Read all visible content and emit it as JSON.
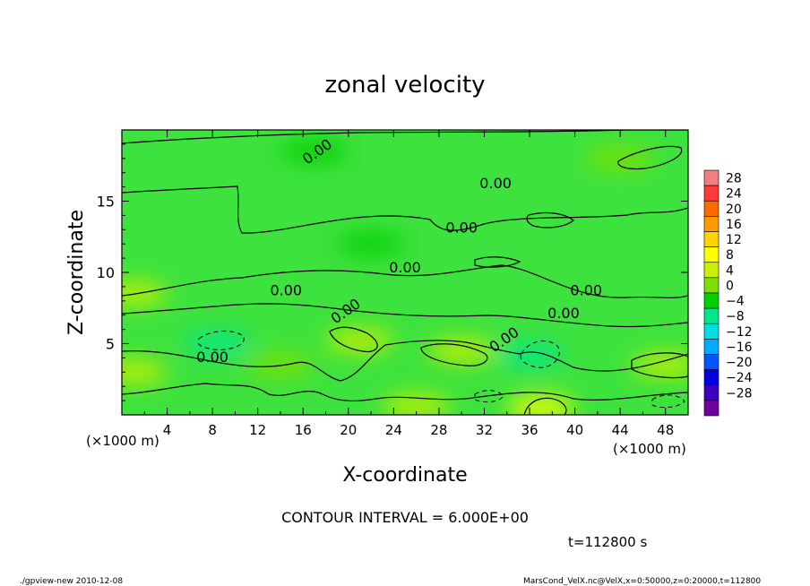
{
  "chart_data": {
    "type": "heatmap",
    "title": "zonal velocity",
    "xlabel": "X-coordinate",
    "ylabel": "Z-coordinate",
    "x_unit_label_left": "(×1000 m)",
    "x_unit_label_right": "(×1000 m)",
    "xlim": [
      0,
      50
    ],
    "ylim": [
      0,
      20
    ],
    "x_ticks": [
      4,
      8,
      12,
      16,
      20,
      24,
      28,
      32,
      36,
      40,
      44,
      48
    ],
    "y_ticks": [
      5,
      10,
      15
    ],
    "colorbar_levels": [
      28,
      24,
      20,
      16,
      12,
      8,
      4,
      0,
      -4,
      -8,
      -12,
      -16,
      -20,
      -24,
      -28
    ],
    "colorbar_colors": [
      "#f08080",
      "#ff3a3a",
      "#ff6a00",
      "#ff9a00",
      "#ffd400",
      "#ffff00",
      "#c8f000",
      "#7ee000",
      "#00d000",
      "#00e88c",
      "#00e0e0",
      "#00aaff",
      "#0055ff",
      "#0000e0",
      "#4000c0",
      "#7000a0"
    ],
    "contour_interval_text": "CONTOUR INTERVAL = 6.000E+00",
    "contour_labels": [
      "0.00",
      "0.00",
      "0.00",
      "0.00",
      "0.00",
      "0.00",
      "0.00",
      "0.00",
      "0.00"
    ],
    "time_label": "t=112800 s",
    "footer_left": "./gpview-new  2010-12-08",
    "footer_right": "MarsCond_VelX.nc@VelX,x=0:50000,z=0:20000,t=112800",
    "field": [
      {
        "x": 17.0,
        "z": 18.5,
        "v": -1
      },
      {
        "x": 44.0,
        "z": 18.0,
        "v": 3
      },
      {
        "x": 22.0,
        "z": 12.0,
        "v": -1
      },
      {
        "x": 8.5,
        "z": 5.0,
        "v": -6
      },
      {
        "x": 21.0,
        "z": 5.2,
        "v": 6
      },
      {
        "x": 30.0,
        "z": 4.5,
        "v": 7
      },
      {
        "x": 36.0,
        "z": 4.2,
        "v": -6
      },
      {
        "x": 48.0,
        "z": 3.5,
        "v": 7
      },
      {
        "x": 37.0,
        "z": 0.5,
        "v": 9
      },
      {
        "x": 26.0,
        "z": 0.6,
        "v": 5
      },
      {
        "x": 1.0,
        "z": 3.0,
        "v": 6
      },
      {
        "x": 14.0,
        "z": 3.5,
        "v": 2
      },
      {
        "x": 1.0,
        "z": 8.5,
        "v": 5
      }
    ]
  }
}
